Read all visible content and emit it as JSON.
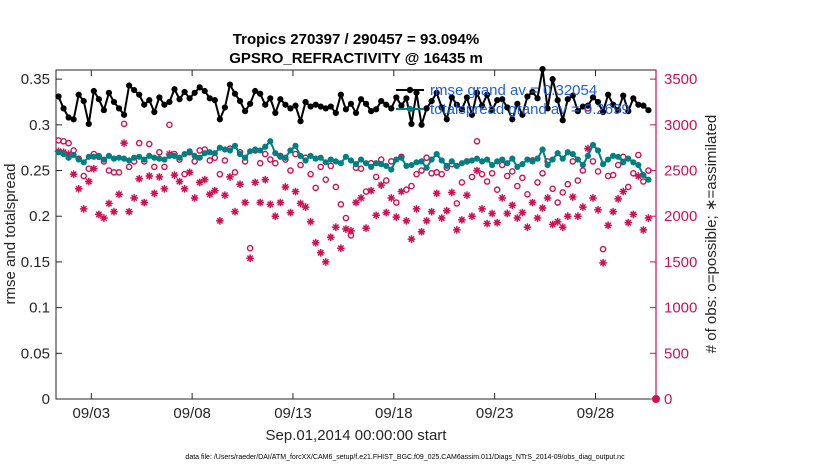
{
  "chart_data": {
    "type": "line",
    "title_line1": "Tropics 270397 / 290457 = 93.094%",
    "title_line2": "GPSRO_REFRACTIVITY @ 16435 m",
    "xlabel": "Sep.01,2014 00:00:00 start",
    "ylabel_left": "rmse and totalspread",
    "ylabel_right": "# of obs: o=possible; ∗=assimilated",
    "footer": "data file: /Users/raeder/DAI/ATM_forcXX/CAM6_setup/f.e21.FHIST_BGC.f09_025.CAM6assim.011/Diags_NTrS_2014-09/obs_diag_output.nc",
    "x_ticks": [
      {
        "x": 3,
        "label": "09/03"
      },
      {
        "x": 8,
        "label": "09/08"
      },
      {
        "x": 13,
        "label": "09/13"
      },
      {
        "x": 18,
        "label": "09/18"
      },
      {
        "x": 23,
        "label": "09/23"
      },
      {
        "x": 28,
        "label": "09/28"
      }
    ],
    "xlim": [
      1.25,
      31.0
    ],
    "ylim_left": [
      0,
      0.36
    ],
    "ylim_right": [
      0,
      3600
    ],
    "y_ticks_left": [
      0,
      0.05,
      0.1,
      0.15,
      0.2,
      0.25,
      0.3,
      0.35
    ],
    "y_tick_labels_left": [
      "0",
      "0.05",
      "0.1",
      "0.15",
      "0.2",
      "0.25",
      "0.3",
      "0.35"
    ],
    "y_ticks_right": [
      0,
      500,
      1000,
      1500,
      2000,
      2500,
      3000,
      3500
    ],
    "y_tick_labels_right": [
      "0",
      "500",
      "1000",
      "1500",
      "2000",
      "2500",
      "3000",
      "3500"
    ],
    "colors": {
      "rmse": "#000000",
      "spread": "#008080",
      "obs": "#cc1155",
      "legend_text": "#1f5fd6"
    },
    "legend": [
      {
        "label": "rmse grand av = 0.32054"
      },
      {
        "label": "totalspread grand av = 0.2699"
      }
    ],
    "x": [
      1.375,
      1.625,
      1.875,
      2.125,
      2.375,
      2.625,
      2.875,
      3.125,
      3.375,
      3.625,
      3.875,
      4.125,
      4.375,
      4.625,
      4.875,
      5.125,
      5.375,
      5.625,
      5.875,
      6.125,
      6.375,
      6.625,
      6.875,
      7.125,
      7.375,
      7.625,
      7.875,
      8.125,
      8.375,
      8.625,
      8.875,
      9.125,
      9.375,
      9.625,
      9.875,
      10.125,
      10.375,
      10.625,
      10.875,
      11.125,
      11.375,
      11.625,
      11.875,
      12.125,
      12.375,
      12.625,
      12.875,
      13.125,
      13.375,
      13.625,
      13.875,
      14.125,
      14.375,
      14.625,
      14.875,
      15.125,
      15.375,
      15.625,
      15.875,
      16.125,
      16.375,
      16.625,
      16.875,
      17.125,
      17.375,
      17.625,
      17.875,
      18.125,
      18.375,
      18.625,
      18.875,
      19.125,
      19.375,
      19.625,
      19.875,
      20.125,
      20.375,
      20.625,
      20.875,
      21.125,
      21.375,
      21.625,
      21.875,
      22.125,
      22.375,
      22.625,
      22.875,
      23.125,
      23.375,
      23.625,
      23.875,
      24.125,
      24.375,
      24.625,
      24.875,
      25.125,
      25.375,
      25.625,
      25.875,
      26.125,
      26.375,
      26.625,
      26.875,
      27.125,
      27.375,
      27.625,
      27.875,
      28.125,
      28.375,
      28.625,
      28.875,
      29.125,
      29.375,
      29.625,
      29.875,
      30.125,
      30.375,
      30.625
    ],
    "series": [
      {
        "name": "rmse",
        "axis": "left",
        "marker": "circle-filled",
        "values": [
          0.331,
          0.318,
          0.308,
          0.306,
          0.333,
          0.326,
          0.301,
          0.337,
          0.328,
          0.316,
          0.335,
          0.325,
          0.318,
          0.311,
          0.343,
          0.338,
          0.333,
          0.322,
          0.327,
          0.314,
          0.33,
          0.322,
          0.325,
          0.339,
          0.328,
          0.336,
          0.329,
          0.335,
          0.341,
          0.337,
          0.329,
          0.327,
          0.306,
          0.319,
          0.344,
          0.334,
          0.326,
          0.315,
          0.323,
          0.337,
          0.334,
          0.322,
          0.329,
          0.313,
          0.328,
          0.322,
          0.318,
          0.321,
          0.304,
          0.325,
          0.32,
          0.322,
          0.32,
          0.318,
          0.32,
          0.313,
          0.333,
          0.317,
          0.323,
          0.313,
          0.328,
          0.323,
          0.315,
          0.317,
          0.326,
          0.322,
          0.318,
          0.33,
          0.321,
          0.329,
          0.301,
          0.335,
          0.3,
          0.318,
          0.326,
          0.335,
          0.319,
          0.306,
          0.33,
          0.322,
          0.317,
          0.33,
          0.311,
          0.335,
          0.321,
          0.333,
          0.316,
          0.327,
          0.328,
          0.319,
          0.306,
          0.323,
          0.311,
          0.331,
          0.336,
          0.329,
          0.361,
          0.318,
          0.35,
          0.327,
          0.305,
          0.328,
          0.332,
          0.315,
          0.32,
          0.321,
          0.33,
          0.325,
          0.314,
          0.333,
          0.322,
          0.316,
          0.332,
          0.315,
          0.329,
          0.322,
          0.321,
          0.316
        ]
      },
      {
        "name": "totalspread",
        "axis": "left",
        "marker": "circle-filled",
        "values": [
          0.27,
          0.268,
          0.264,
          0.267,
          0.262,
          0.259,
          0.265,
          0.265,
          0.266,
          0.262,
          0.266,
          0.263,
          0.264,
          0.263,
          0.261,
          0.264,
          0.265,
          0.262,
          0.266,
          0.264,
          0.263,
          0.262,
          0.266,
          0.266,
          0.264,
          0.268,
          0.271,
          0.266,
          0.264,
          0.269,
          0.27,
          0.269,
          0.275,
          0.273,
          0.272,
          0.277,
          0.268,
          0.264,
          0.271,
          0.273,
          0.272,
          0.276,
          0.282,
          0.269,
          0.265,
          0.264,
          0.272,
          0.277,
          0.266,
          0.261,
          0.266,
          0.263,
          0.264,
          0.259,
          0.262,
          0.26,
          0.258,
          0.265,
          0.261,
          0.257,
          0.262,
          0.258,
          0.254,
          0.258,
          0.257,
          0.255,
          0.251,
          0.262,
          0.264,
          0.255,
          0.256,
          0.259,
          0.26,
          0.253,
          0.262,
          0.268,
          0.261,
          0.255,
          0.26,
          0.255,
          0.258,
          0.26,
          0.261,
          0.263,
          0.26,
          0.262,
          0.256,
          0.26,
          0.262,
          0.258,
          0.263,
          0.254,
          0.257,
          0.262,
          0.26,
          0.263,
          0.273,
          0.256,
          0.262,
          0.269,
          0.263,
          0.27,
          0.268,
          0.262,
          0.256,
          0.266,
          0.278,
          0.272,
          0.257,
          0.262,
          0.266,
          0.265,
          0.259,
          0.263,
          0.259,
          0.256,
          0.245,
          0.24
        ]
      },
      {
        "name": "possible",
        "axis": "right",
        "marker": "circle-open",
        "values": [
          2830,
          2820,
          2800,
          2720,
          2630,
          2440,
          2520,
          2680,
          2650,
          2600,
          2500,
          2480,
          2480,
          3010,
          2540,
          2600,
          2800,
          2600,
          2790,
          2540,
          2700,
          2540,
          3000,
          2680,
          2620,
          2460,
          2700,
          2600,
          2720,
          2730,
          2610,
          2640,
          2460,
          2610,
          2740,
          2480,
          2700,
          2600,
          1650,
          2720,
          2580,
          2680,
          2620,
          2580,
          2660,
          2620,
          2500,
          2680,
          2560,
          2640,
          2460,
          2310,
          2540,
          2400,
          2550,
          2320,
          2130,
          1980,
          1790,
          2530,
          2520,
          2270,
          2580,
          2430,
          2620,
          2390,
          2600,
          2150,
          2650,
          2290,
          2330,
          2460,
          2500,
          2640,
          2470,
          2480,
          2460,
          2530,
          2570,
          2140,
          2370,
          2600,
          2430,
          2820,
          2460,
          2380,
          2470,
          2290,
          2560,
          2440,
          2490,
          2330,
          2420,
          2240,
          2610,
          2370,
          2470,
          2600,
          2300,
          2150,
          2260,
          2350,
          2600,
          2390,
          2500,
          3180,
          2600,
          2490,
          1640,
          2440,
          2450,
          2560,
          2650,
          2320,
          2470,
          2670,
          2380,
          2500
        ]
      },
      {
        "name": "assimilated",
        "axis": "right",
        "marker": "asterisk",
        "values": [
          2710,
          2700,
          2680,
          2460,
          2300,
          2080,
          2380,
          2520,
          2020,
          1980,
          2140,
          2050,
          2240,
          2800,
          2050,
          2200,
          2410,
          2150,
          2440,
          2250,
          2430,
          2300,
          2680,
          2450,
          2380,
          2300,
          2480,
          2200,
          2370,
          2400,
          2240,
          2280,
          1950,
          2230,
          2430,
          2050,
          2350,
          2150,
          1540,
          2370,
          2150,
          2400,
          2130,
          2000,
          2150,
          2320,
          2040,
          2270,
          2140,
          2100,
          1940,
          1710,
          1600,
          1500,
          1770,
          1880,
          1650,
          1860,
          1840,
          2150,
          2200,
          1870,
          2280,
          2010,
          2340,
          2040,
          2200,
          1990,
          2270,
          1950,
          1750,
          2080,
          1830,
          1950,
          2050,
          2250,
          1980,
          2060,
          2260,
          1850,
          1960,
          2230,
          2000,
          2500,
          2080,
          1920,
          2030,
          1930,
          2200,
          2030,
          2120,
          1980,
          2040,
          1880,
          2150,
          1980,
          2090,
          2200,
          1910,
          1940,
          1880,
          2000,
          2210,
          2000,
          2100,
          2740,
          2200,
          2070,
          1490,
          1900,
          2050,
          2190,
          2270,
          1930,
          2020,
          2440,
          1850,
          1980
        ]
      }
    ]
  }
}
